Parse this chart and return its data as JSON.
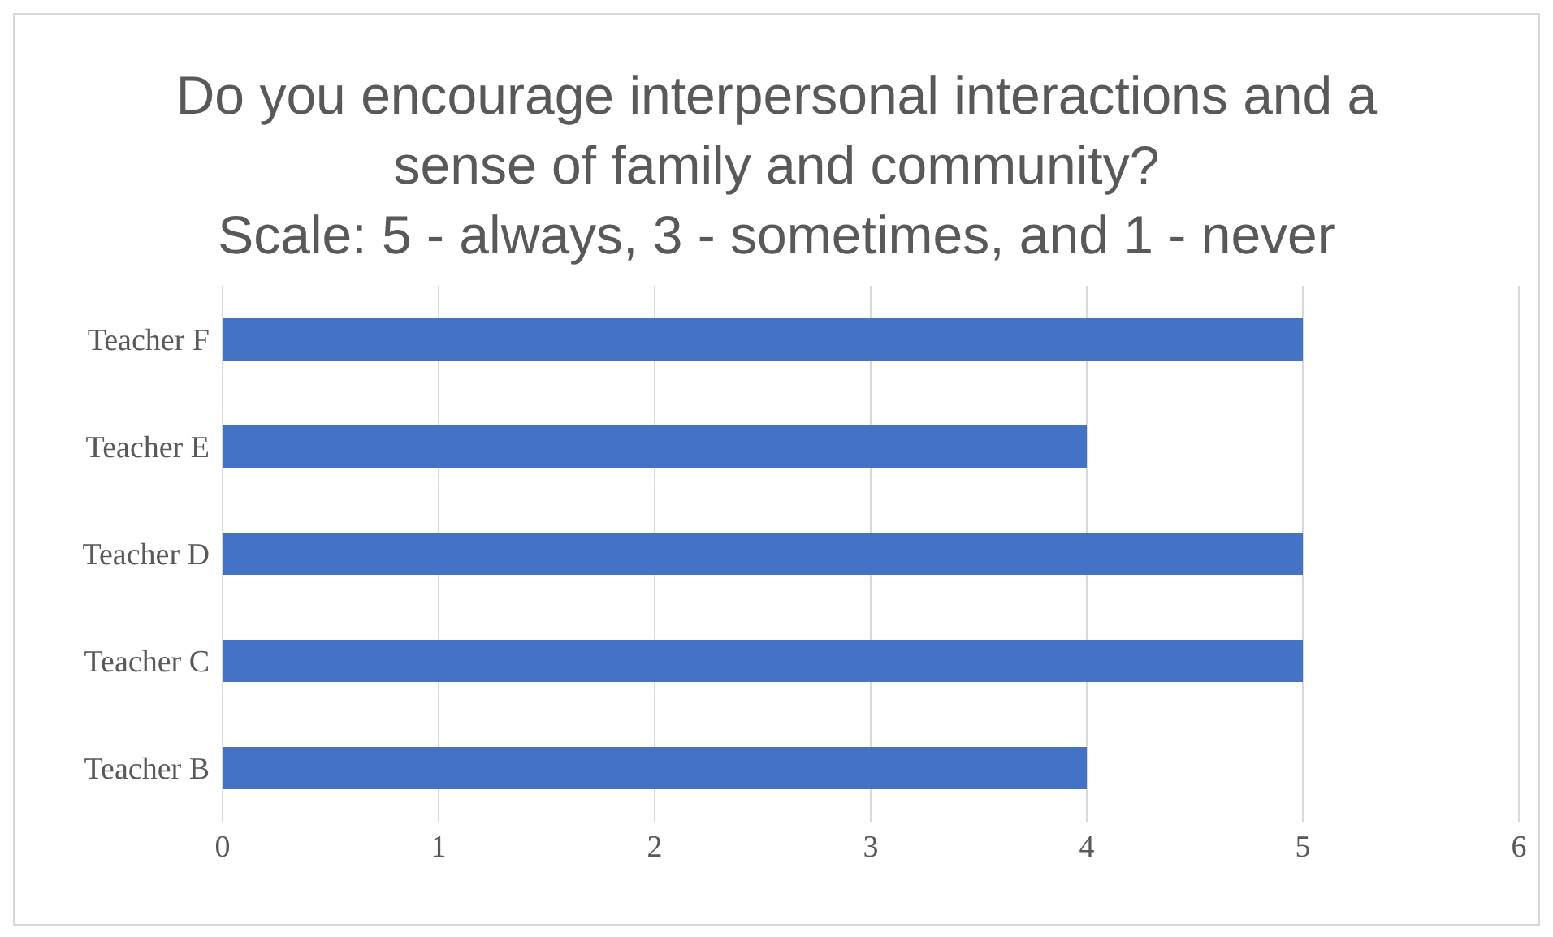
{
  "chart_data": {
    "type": "bar",
    "orientation": "horizontal",
    "title": "Do you encourage interpersonal interactions and a sense of family and community?",
    "subtitle": "Scale: 5 - always, 3 - sometimes, and 1 - never",
    "categories": [
      "Teacher F",
      "Teacher E",
      "Teacher D",
      "Teacher C",
      "Teacher B"
    ],
    "values": [
      5,
      4,
      5,
      5,
      4
    ],
    "color": "#4472c4",
    "xlim": [
      0,
      6
    ],
    "xticks": [
      0,
      1,
      2,
      3,
      4,
      5,
      6
    ],
    "grid": "x"
  }
}
